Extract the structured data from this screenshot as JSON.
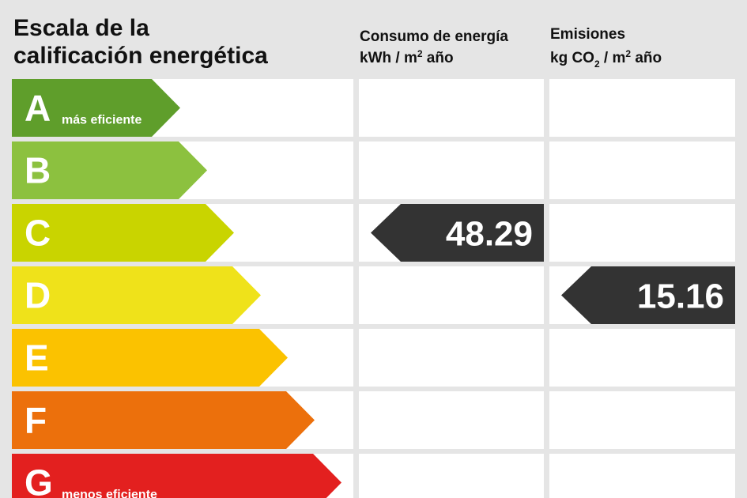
{
  "header": {
    "title": [
      "Escala de la",
      "calificación energética"
    ],
    "consumption": {
      "label": "Consumo de energía",
      "unit": [
        "kWh / m",
        "2",
        " año"
      ]
    },
    "emissions": {
      "label": "Emisiones",
      "unit": [
        "kg CO",
        "2",
        " / m",
        "2",
        " año"
      ]
    }
  },
  "ratings": [
    {
      "letter": "A",
      "note": "más eficiente",
      "color": "#5f9e2b"
    },
    {
      "letter": "B",
      "color": "#8cc13f"
    },
    {
      "letter": "C",
      "color": "#c9d400",
      "consumption": 48.29
    },
    {
      "letter": "D",
      "color": "#efe21a",
      "emissions": 15.16
    },
    {
      "letter": "E",
      "color": "#fbc200"
    },
    {
      "letter": "F",
      "color": "#ec700c"
    },
    {
      "letter": "G",
      "note": "menos eficiente",
      "color": "#e3201f"
    }
  ]
}
